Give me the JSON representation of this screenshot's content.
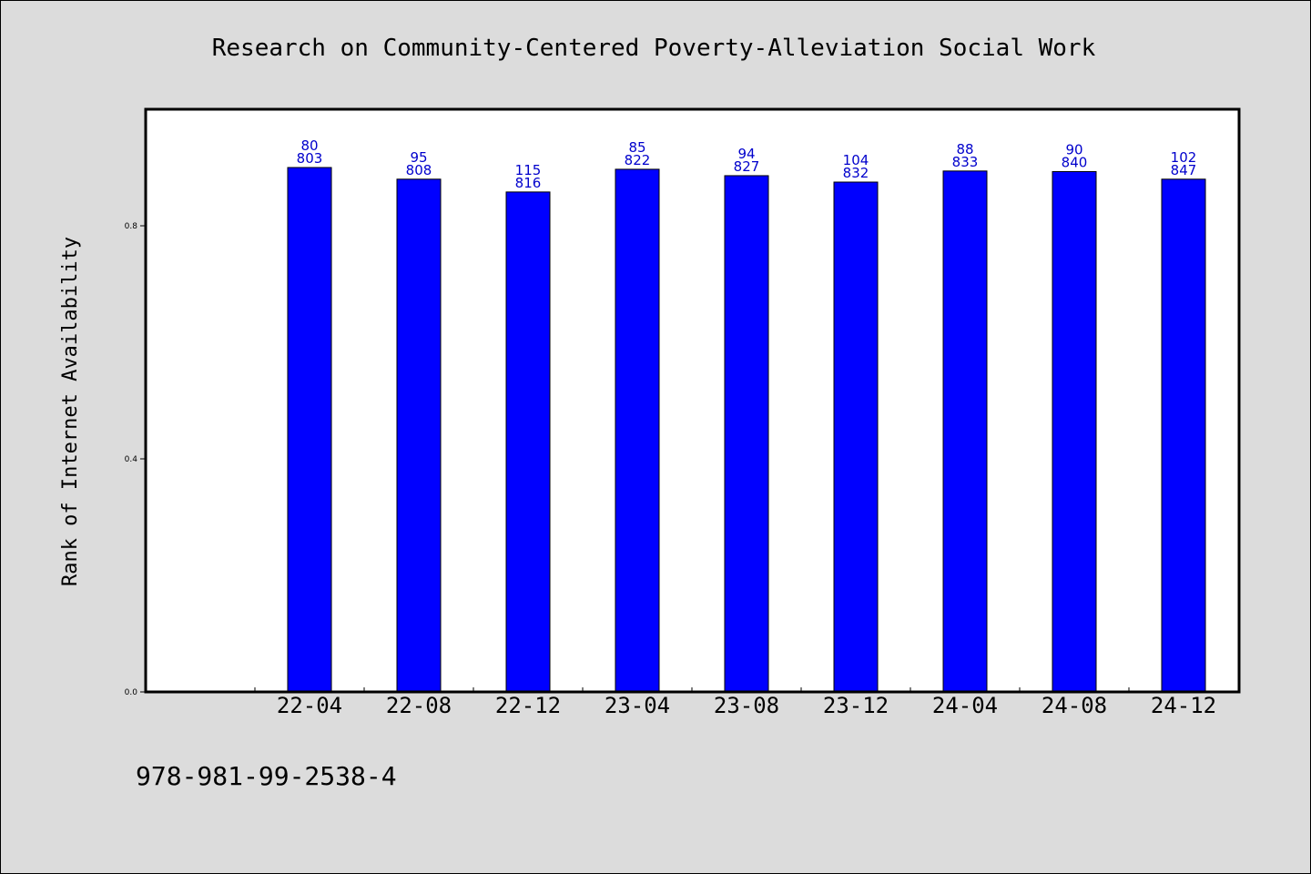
{
  "chart_data": {
    "type": "bar",
    "title": "Research on Community-Centered Poverty-Alleviation Social Work",
    "xlabel": "",
    "ylabel": "Rank of Internet Availability",
    "categories": [
      "22-04",
      "22-08",
      "22-12",
      "23-04",
      "23-08",
      "23-12",
      "24-04",
      "24-08",
      "24-12"
    ],
    "values": [
      0.9,
      0.88,
      0.858,
      0.897,
      0.886,
      0.875,
      0.894,
      0.893,
      0.88
    ],
    "labels_top": [
      "80",
      "95",
      "115",
      "85",
      "94",
      "104",
      "88",
      "90",
      "102"
    ],
    "labels_bottom": [
      "803",
      "808",
      "816",
      "822",
      "827",
      "832",
      "833",
      "840",
      "847"
    ],
    "ylim": [
      0,
      1.0
    ],
    "yticks": [
      0.0,
      0.4,
      0.8
    ],
    "ytick_labels": [
      "0.0",
      "0.4",
      "0.8"
    ],
    "bar_color": "#0000ff",
    "label_color": "#0000cc",
    "grid": false,
    "legend": "none"
  },
  "footer": {
    "isbn": "978-981-99-2538-4"
  }
}
